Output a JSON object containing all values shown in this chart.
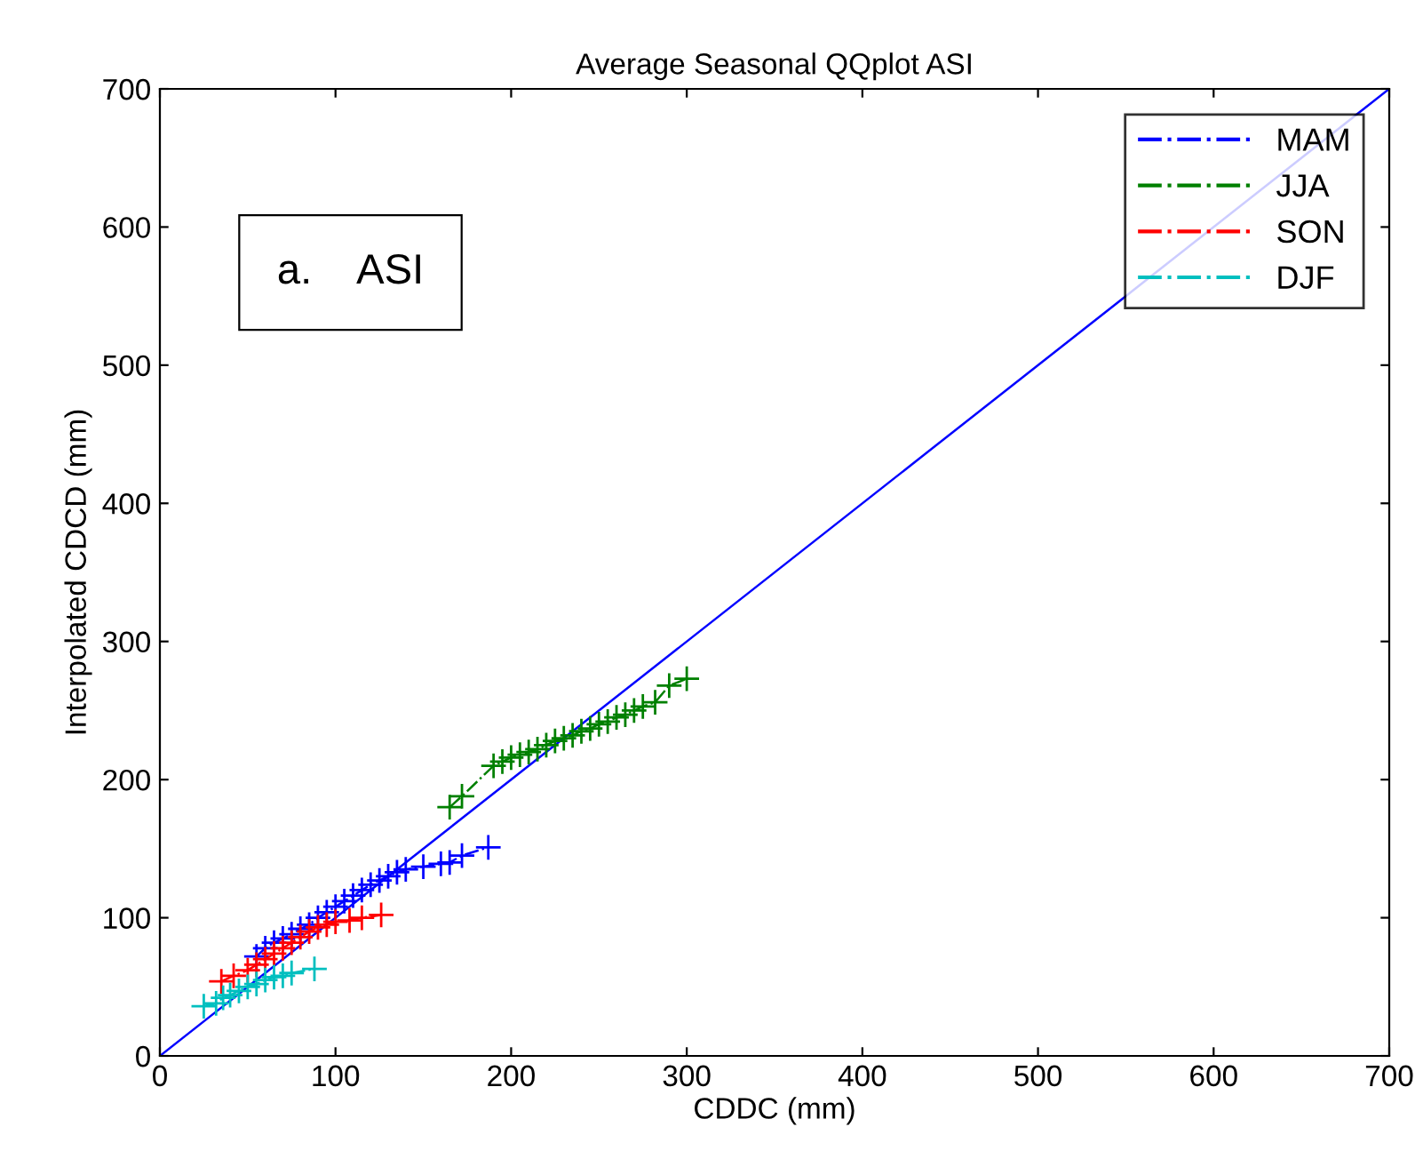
{
  "chart_data": {
    "type": "line",
    "title": "Average Seasonal QQplot ASI",
    "xlabel": "CDDC (mm)",
    "ylabel": "Interpolated CDCD (mm)",
    "annotations": [
      "a.    ASI"
    ],
    "xlim": [
      0,
      700
    ],
    "ylim": [
      0,
      700
    ],
    "xticks": [
      0,
      100,
      200,
      300,
      400,
      500,
      600,
      700
    ],
    "yticks": [
      0,
      100,
      200,
      300,
      400,
      500,
      600,
      700
    ],
    "grid": false,
    "legend": "top right",
    "marker": "cross",
    "line_style": "dashed",
    "series": [
      {
        "type": "line",
        "marker": "none",
        "line_style": "solid",
        "color": "#0000ff",
        "x": [
          0,
          700
        ],
        "values": [
          0,
          700
        ]
      },
      {
        "name": "MAM",
        "color": "#0000ff",
        "x": [
          55,
          60,
          65,
          70,
          75,
          80,
          85,
          90,
          95,
          100,
          105,
          110,
          115,
          120,
          125,
          130,
          135,
          140,
          150,
          160,
          165,
          172,
          187
        ],
        "values": [
          72,
          78,
          82,
          85,
          88,
          92,
          95,
          100,
          104,
          108,
          112,
          116,
          120,
          124,
          127,
          130,
          133,
          135,
          137,
          139,
          140,
          145,
          151
        ]
      },
      {
        "name": "JJA",
        "color": "#008000",
        "x": [
          165,
          172,
          190,
          195,
          200,
          205,
          210,
          215,
          220,
          225,
          230,
          235,
          240,
          245,
          250,
          255,
          260,
          265,
          270,
          275,
          282,
          290,
          300
        ],
        "values": [
          180,
          188,
          210,
          213,
          216,
          218,
          220,
          222,
          225,
          228,
          230,
          232,
          235,
          237,
          240,
          242,
          245,
          247,
          250,
          253,
          256,
          268,
          273
        ]
      },
      {
        "name": "SON",
        "color": "#ff0000",
        "x": [
          35,
          42,
          50,
          55,
          60,
          65,
          70,
          75,
          80,
          85,
          90,
          95,
          100,
          108,
          115,
          126
        ],
        "values": [
          54,
          58,
          62,
          66,
          70,
          74,
          78,
          82,
          86,
          90,
          93,
          95,
          97,
          98,
          100,
          102
        ]
      },
      {
        "name": "DJF",
        "color": "#00bfbf",
        "x": [
          25,
          32,
          36,
          40,
          45,
          50,
          55,
          60,
          65,
          70,
          75,
          88
        ],
        "values": [
          36,
          38,
          42,
          44,
          47,
          50,
          52,
          55,
          57,
          58,
          60,
          63
        ]
      }
    ]
  }
}
